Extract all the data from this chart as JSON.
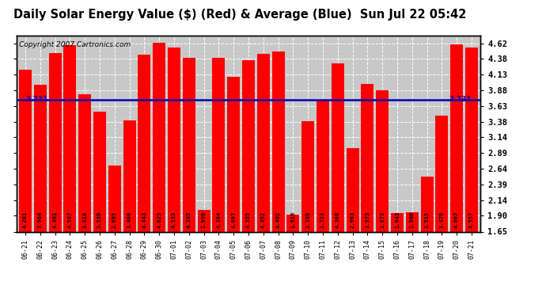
{
  "title": "Daily Solar Energy Value ($) (Red) & Average (Blue)  Sun Jul 22 05:42",
  "copyright": "Copyright 2007 Cartronics.com",
  "categories": [
    "06-21",
    "06-22",
    "06-23",
    "06-24",
    "06-25",
    "06-26",
    "06-27",
    "06-28",
    "06-29",
    "06-30",
    "07-01",
    "07-02",
    "07-03",
    "07-04",
    "07-05",
    "07-06",
    "07-07",
    "07-08",
    "07-09",
    "07-10",
    "07-11",
    "07-12",
    "07-13",
    "07-14",
    "07-15",
    "07-16",
    "07-17",
    "07-18",
    "07-19",
    "07-20",
    "07-21"
  ],
  "values": [
    4.201,
    3.964,
    4.461,
    4.587,
    3.818,
    3.539,
    2.695,
    3.408,
    4.443,
    4.623,
    4.553,
    4.385,
    1.999,
    4.394,
    4.097,
    4.355,
    4.452,
    4.492,
    1.919,
    3.386,
    3.723,
    4.308,
    2.963,
    3.973,
    3.873,
    1.943,
    1.96,
    2.515,
    3.479,
    4.607,
    4.557
  ],
  "average": 3.731,
  "bar_color": "#ff0000",
  "avg_line_color": "#0000bb",
  "bg_color": "#ffffff",
  "plot_bg_color": "#c8c8c8",
  "grid_color": "#ffffff",
  "ylim_min": 1.65,
  "ylim_max": 4.74,
  "yticks": [
    1.65,
    1.9,
    2.14,
    2.39,
    2.64,
    2.89,
    3.14,
    3.38,
    3.63,
    3.88,
    4.13,
    4.38,
    4.62
  ],
  "title_fontsize": 10.5,
  "copyright_fontsize": 6.5,
  "bar_value_fontsize": 5.0,
  "avg_label_fontsize": 6.5,
  "avg_label": "3.731"
}
